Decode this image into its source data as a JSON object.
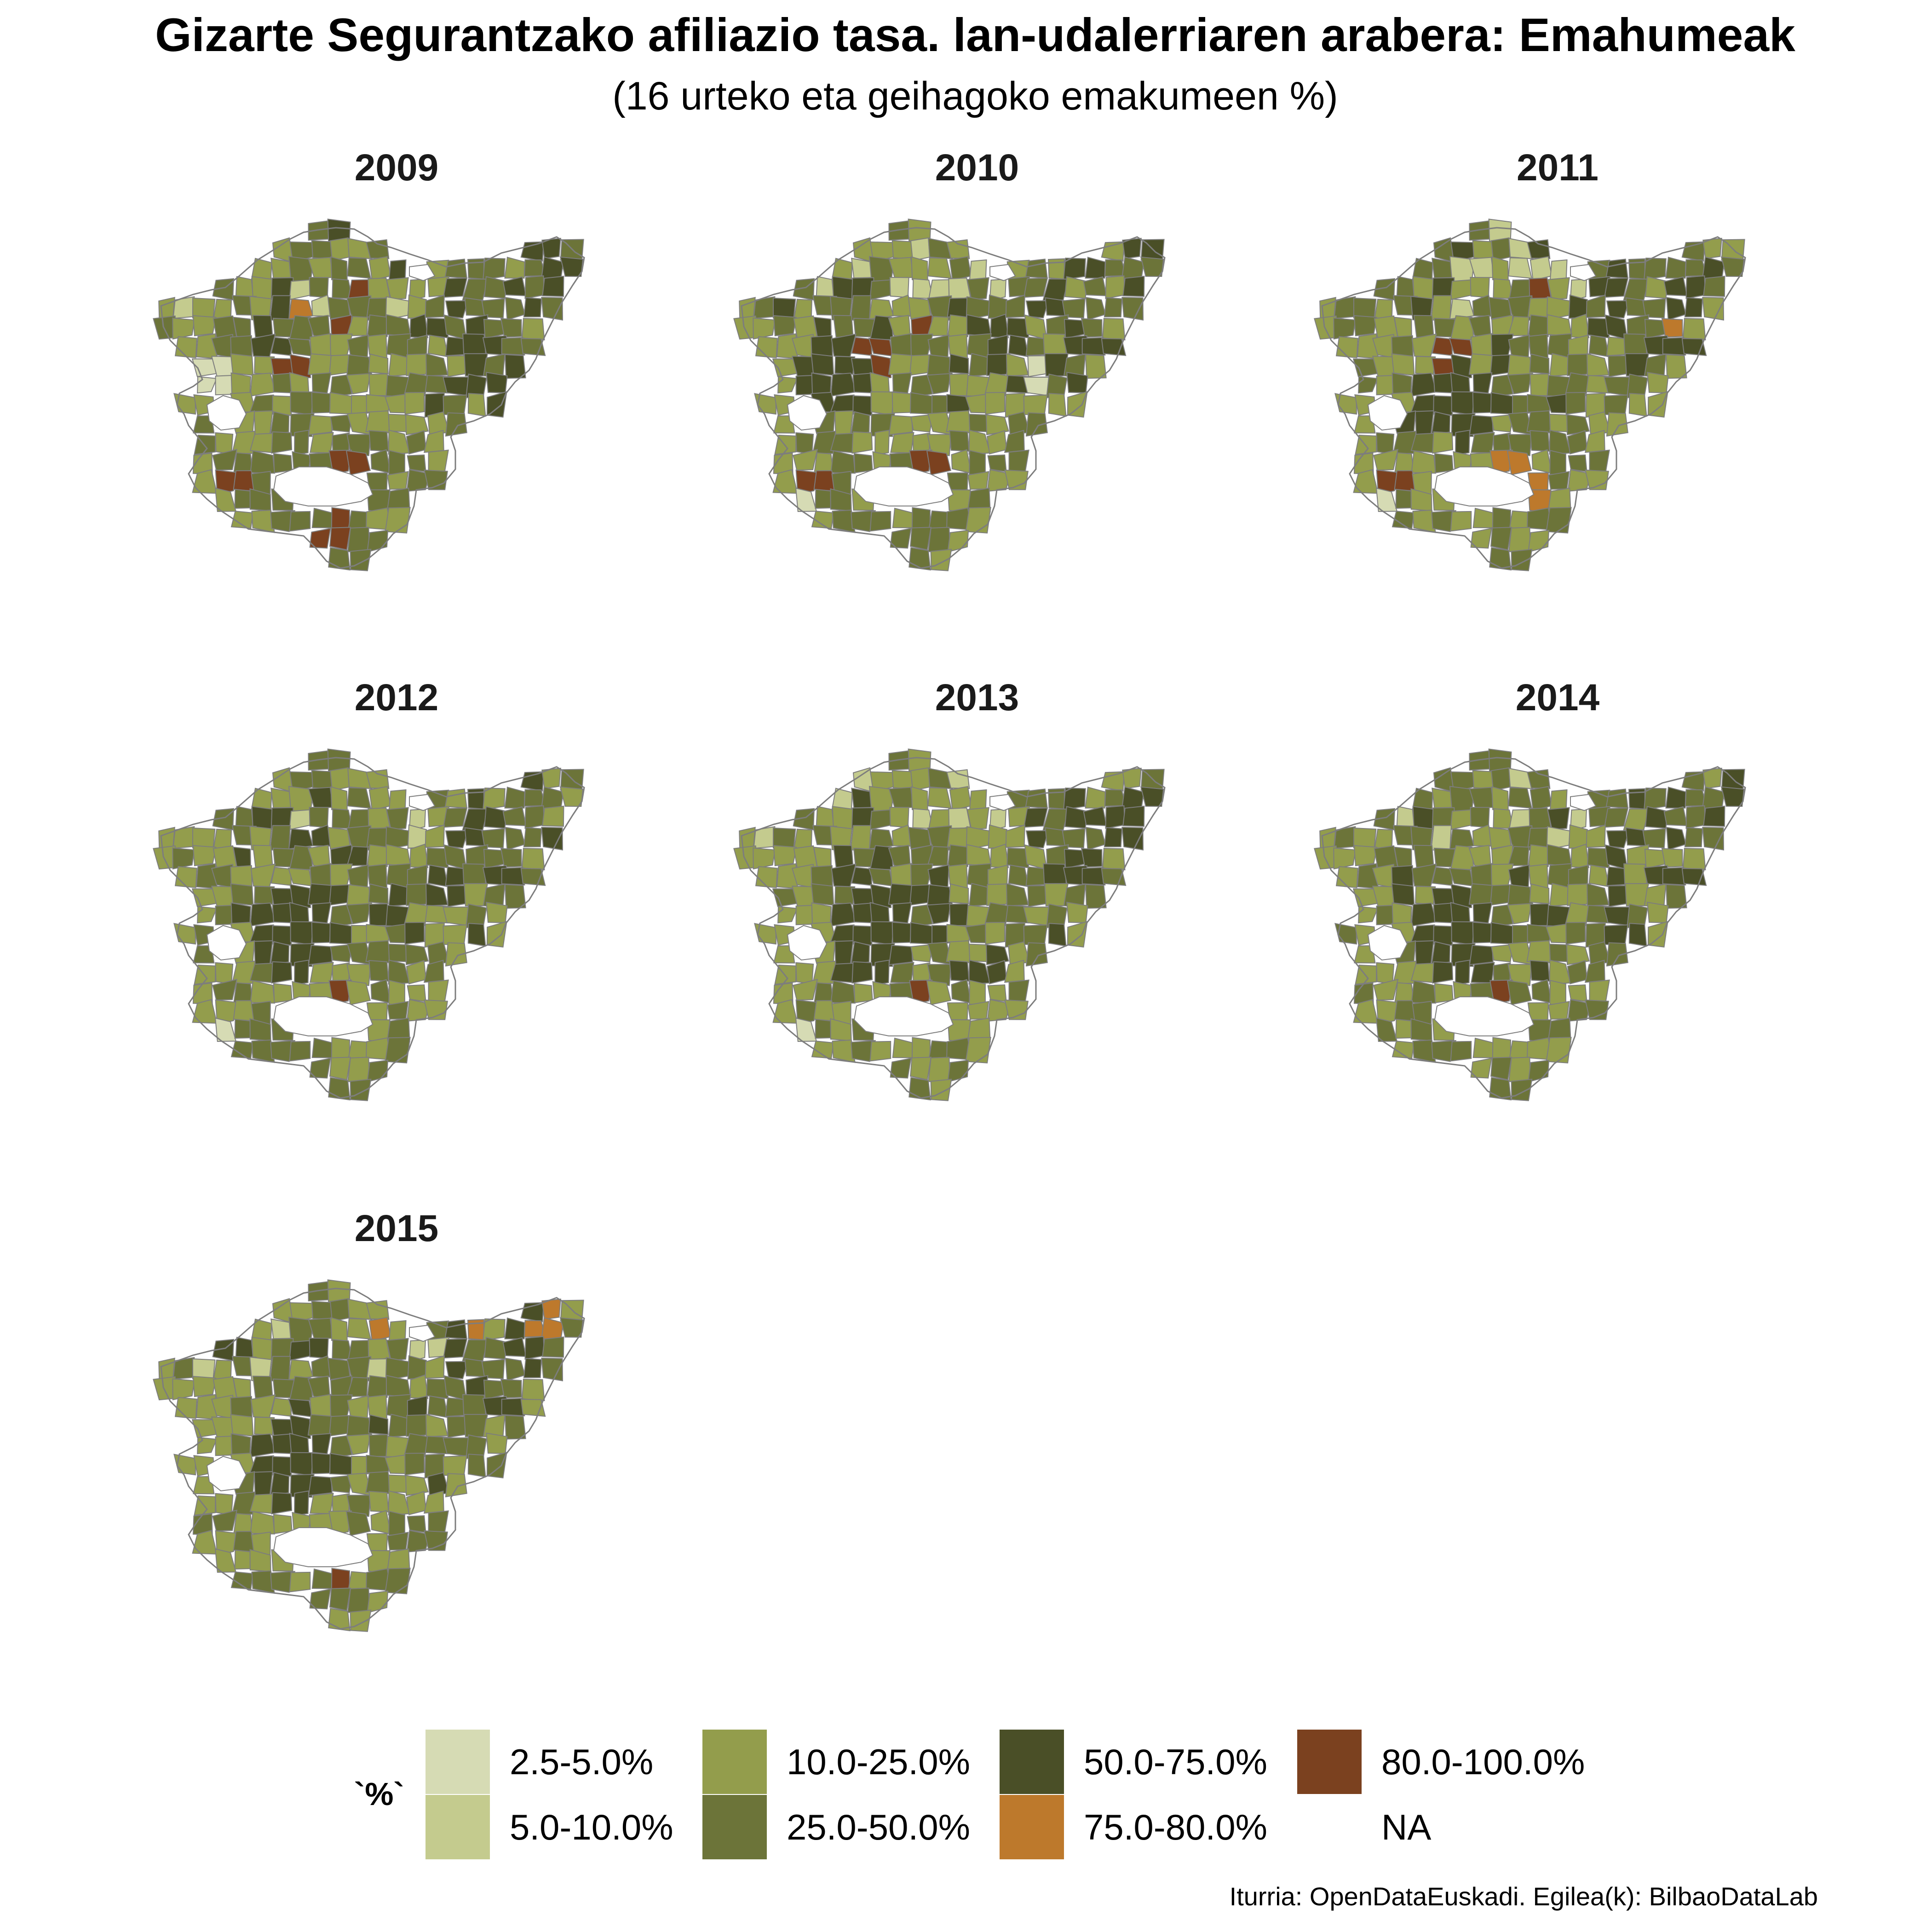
{
  "title": "Gizarte Segurantzako afiliazio tasa. lan-udalerriaren arabera: Emahumeak",
  "subtitle": "(16 urteko eta geihagoko emakumeen %)",
  "colors": {
    "c1": "#d6dbb4",
    "c2": "#c4cb8e",
    "c3": "#939d4c",
    "c4": "#6c7439",
    "c5": "#4a4f27",
    "c6": "#bd792c",
    "c7": "#7b411f",
    "border": "#7d7d7d"
  },
  "legend": {
    "title": "`%`",
    "items": [
      {
        "label": "2.5-5.0%",
        "color": "#d6dbb4"
      },
      {
        "label": "5.0-10.0%",
        "color": "#c4cb8e"
      },
      {
        "label": "10.0-25.0%",
        "color": "#939d4c"
      },
      {
        "label": "25.0-50.0%",
        "color": "#6c7439"
      },
      {
        "label": "50.0-75.0%",
        "color": "#4a4f27"
      },
      {
        "label": "75.0-80.0%",
        "color": "#bd792c"
      },
      {
        "label": "80.0-100.0%",
        "color": "#7b411f"
      },
      {
        "label": "NA",
        "color": "none"
      }
    ]
  },
  "panels": [
    {
      "year": "2009"
    },
    {
      "year": "2010"
    },
    {
      "year": "2011"
    },
    {
      "year": "2012"
    },
    {
      "year": "2013"
    },
    {
      "year": "2014"
    },
    {
      "year": "2015"
    }
  ],
  "caption": "Iturria: OpenDataEuskadi. Egilea(k): BilbaoDataLab"
}
